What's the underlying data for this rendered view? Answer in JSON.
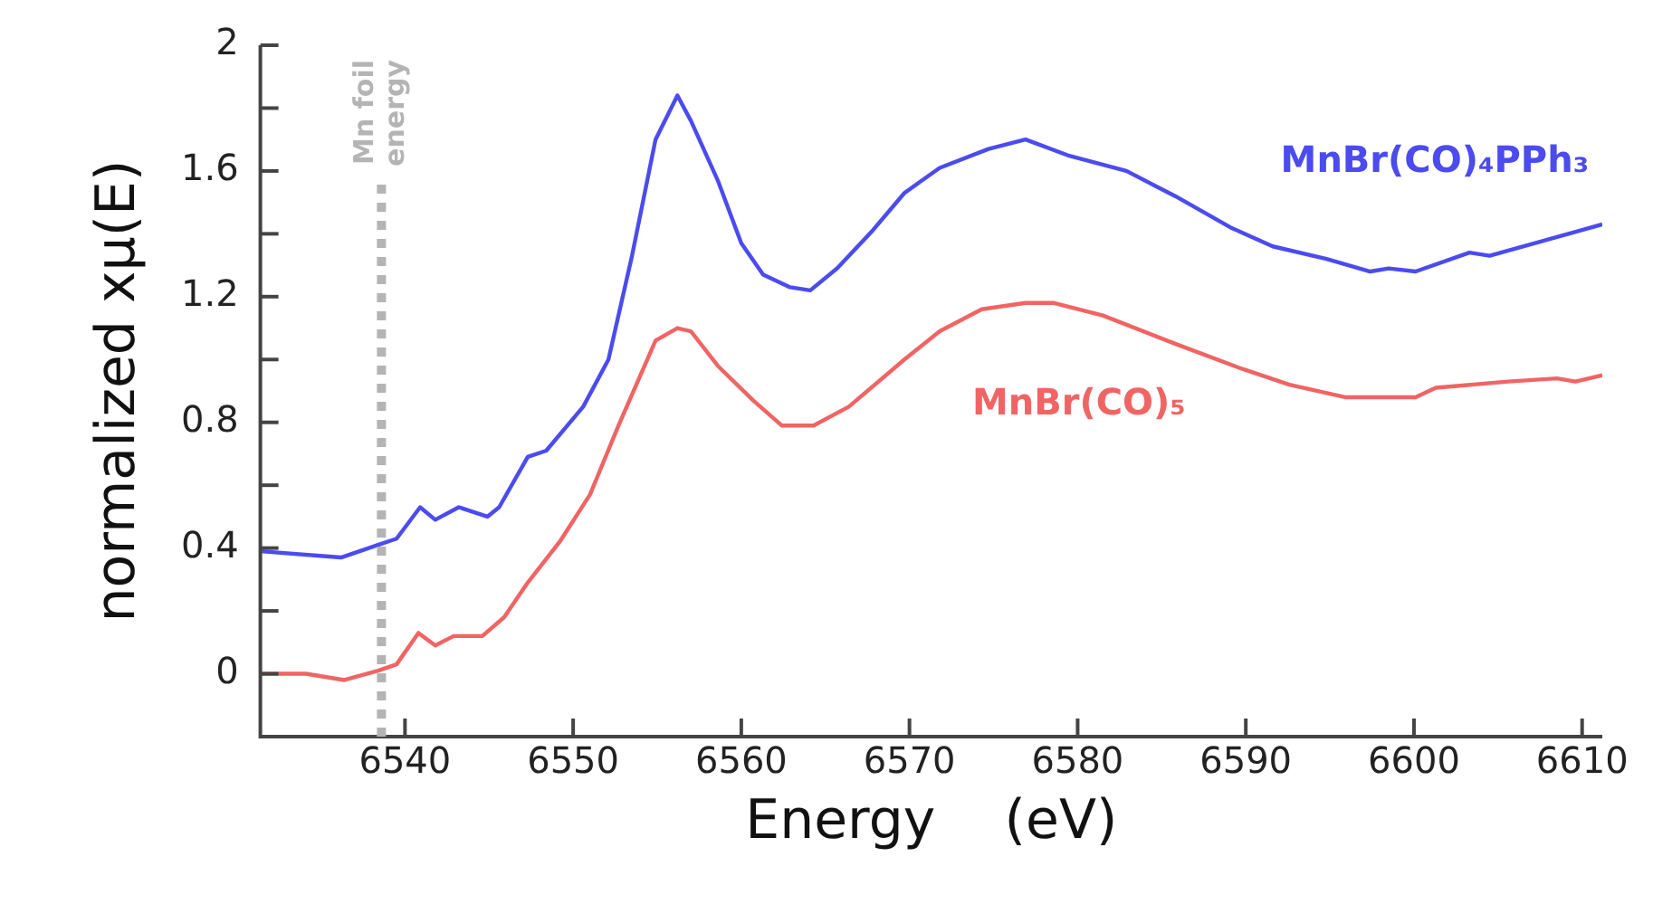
{
  "chart_data": {
    "type": "line",
    "xlabel": "Energy    (eV)",
    "ylabel": "normalized xμ(E)",
    "xlim": [
      6531.4,
      6611.2
    ],
    "xticks": [
      6540,
      6550,
      6560,
      6570,
      6580,
      6590,
      6600,
      6610
    ],
    "ylim": [
      -0.2,
      2
    ],
    "yticks": [
      0,
      {
        "value": 0.2,
        "label": null
      },
      0.4,
      {
        "value": 0.6,
        "label": null
      },
      0.8,
      {
        "value": 1.0,
        "label": null
      },
      1.2,
      {
        "value": 1.4,
        "label": null
      },
      1.6,
      {
        "value": 1.8,
        "label": null
      },
      2
    ],
    "marker": "none",
    "line_style": "solid",
    "legend": false,
    "ref_lines": [
      {
        "axis": "x",
        "value": 6538.6,
        "label": "Mn foil energy",
        "color": "#b4b4b4",
        "line_style": "dotted"
      }
    ],
    "series": [
      {
        "name": "MnBr(CO)₄PPh₃",
        "color": "#4b4bf0",
        "x": [
          6531.4,
          6536.2,
          6538.4,
          6539.5,
          6540.9,
          6541.8,
          6543.2,
          6544.9,
          6545.6,
          6547.3,
          6548.4,
          6550.6,
          6552.1,
          6553.5,
          6554.9,
          6556.2,
          6557.0,
          6558.6,
          6560.0,
          6561.3,
          6562.9,
          6564.1,
          6565.7,
          6567.8,
          6569.7,
          6571.8,
          6574.7,
          6576.9,
          6579.4,
          6582.9,
          6585.8,
          6589.1,
          6591.6,
          6594.8,
          6597.4,
          6598.5,
          6600.1,
          6603.3,
          6604.5,
          6611.2
        ],
        "values": [
          0.39,
          0.37,
          0.41,
          0.43,
          0.53,
          0.49,
          0.53,
          0.5,
          0.53,
          0.69,
          0.71,
          0.85,
          1.0,
          1.33,
          1.7,
          1.84,
          1.76,
          1.57,
          1.37,
          1.27,
          1.23,
          1.22,
          1.29,
          1.41,
          1.53,
          1.61,
          1.67,
          1.7,
          1.65,
          1.6,
          1.52,
          1.42,
          1.36,
          1.32,
          1.28,
          1.29,
          1.28,
          1.34,
          1.33,
          1.43
        ]
      },
      {
        "name": "MnBr(CO)₅",
        "color": "#f06464",
        "x": [
          6531.4,
          6534.1,
          6536.4,
          6538.4,
          6539.5,
          6540.8,
          6541.8,
          6542.9,
          6544.6,
          6545.9,
          6547.3,
          6549.2,
          6551.0,
          6552.7,
          6554.9,
          6556.2,
          6557.0,
          6558.6,
          6560.7,
          6562.4,
          6564.3,
          6566.4,
          6569.7,
          6571.8,
          6574.3,
          6576.9,
          6578.6,
          6581.5,
          6585.8,
          6589.8,
          6592.6,
          6595.9,
          6600.1,
          6601.3,
          6605.6,
          6608.5,
          6609.6,
          6611.2
        ],
        "values": [
          0.0,
          0.0,
          -0.02,
          0.01,
          0.03,
          0.13,
          0.09,
          0.12,
          0.12,
          0.18,
          0.29,
          0.42,
          0.57,
          0.79,
          1.06,
          1.1,
          1.09,
          0.98,
          0.87,
          0.79,
          0.79,
          0.85,
          1.0,
          1.09,
          1.16,
          1.18,
          1.18,
          1.14,
          1.05,
          0.97,
          0.92,
          0.88,
          0.88,
          0.91,
          0.93,
          0.94,
          0.93,
          0.95
        ]
      }
    ]
  }
}
